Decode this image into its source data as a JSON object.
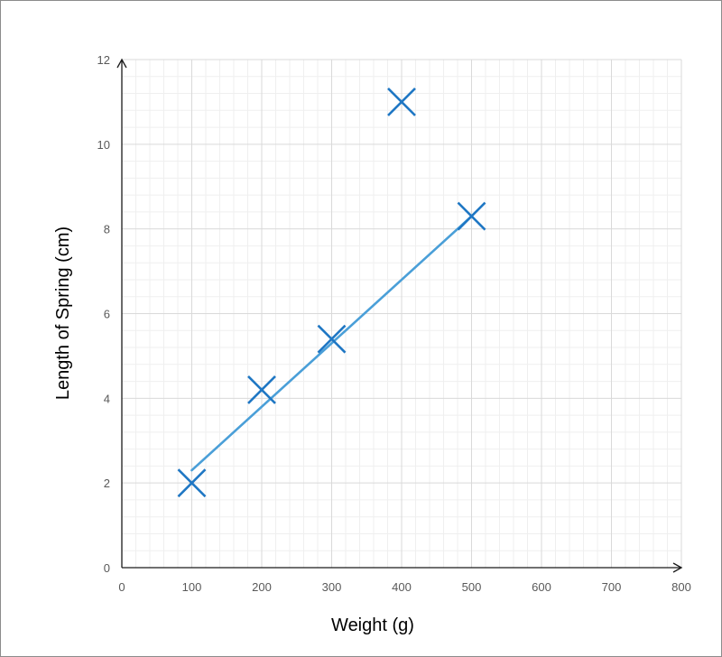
{
  "chart_data": {
    "type": "scatter",
    "title": "",
    "xlabel": "Weight (g)",
    "ylabel": "Length of Spring (cm)",
    "xlim": [
      0,
      800
    ],
    "ylim": [
      0,
      12
    ],
    "x_ticks": [
      "0",
      "100",
      "200",
      "300",
      "400",
      "500",
      "600",
      "700",
      "800"
    ],
    "y_ticks": [
      "0",
      "2",
      "4",
      "6",
      "8",
      "10",
      "12"
    ],
    "grid": true,
    "points": [
      {
        "x": 100,
        "y": 2.0
      },
      {
        "x": 200,
        "y": 4.2
      },
      {
        "x": 300,
        "y": 5.4
      },
      {
        "x": 400,
        "y": 11.0
      },
      {
        "x": 500,
        "y": 8.3
      }
    ],
    "trendline": {
      "x": [
        100,
        500
      ],
      "y": [
        2.3,
        8.3
      ]
    },
    "colors": {
      "marker": "#1f77c4",
      "trendline": "#4a9fd8",
      "grid_major": "#d9d9d9",
      "grid_minor": "#efefef",
      "axis": "#1a1a1a"
    }
  }
}
